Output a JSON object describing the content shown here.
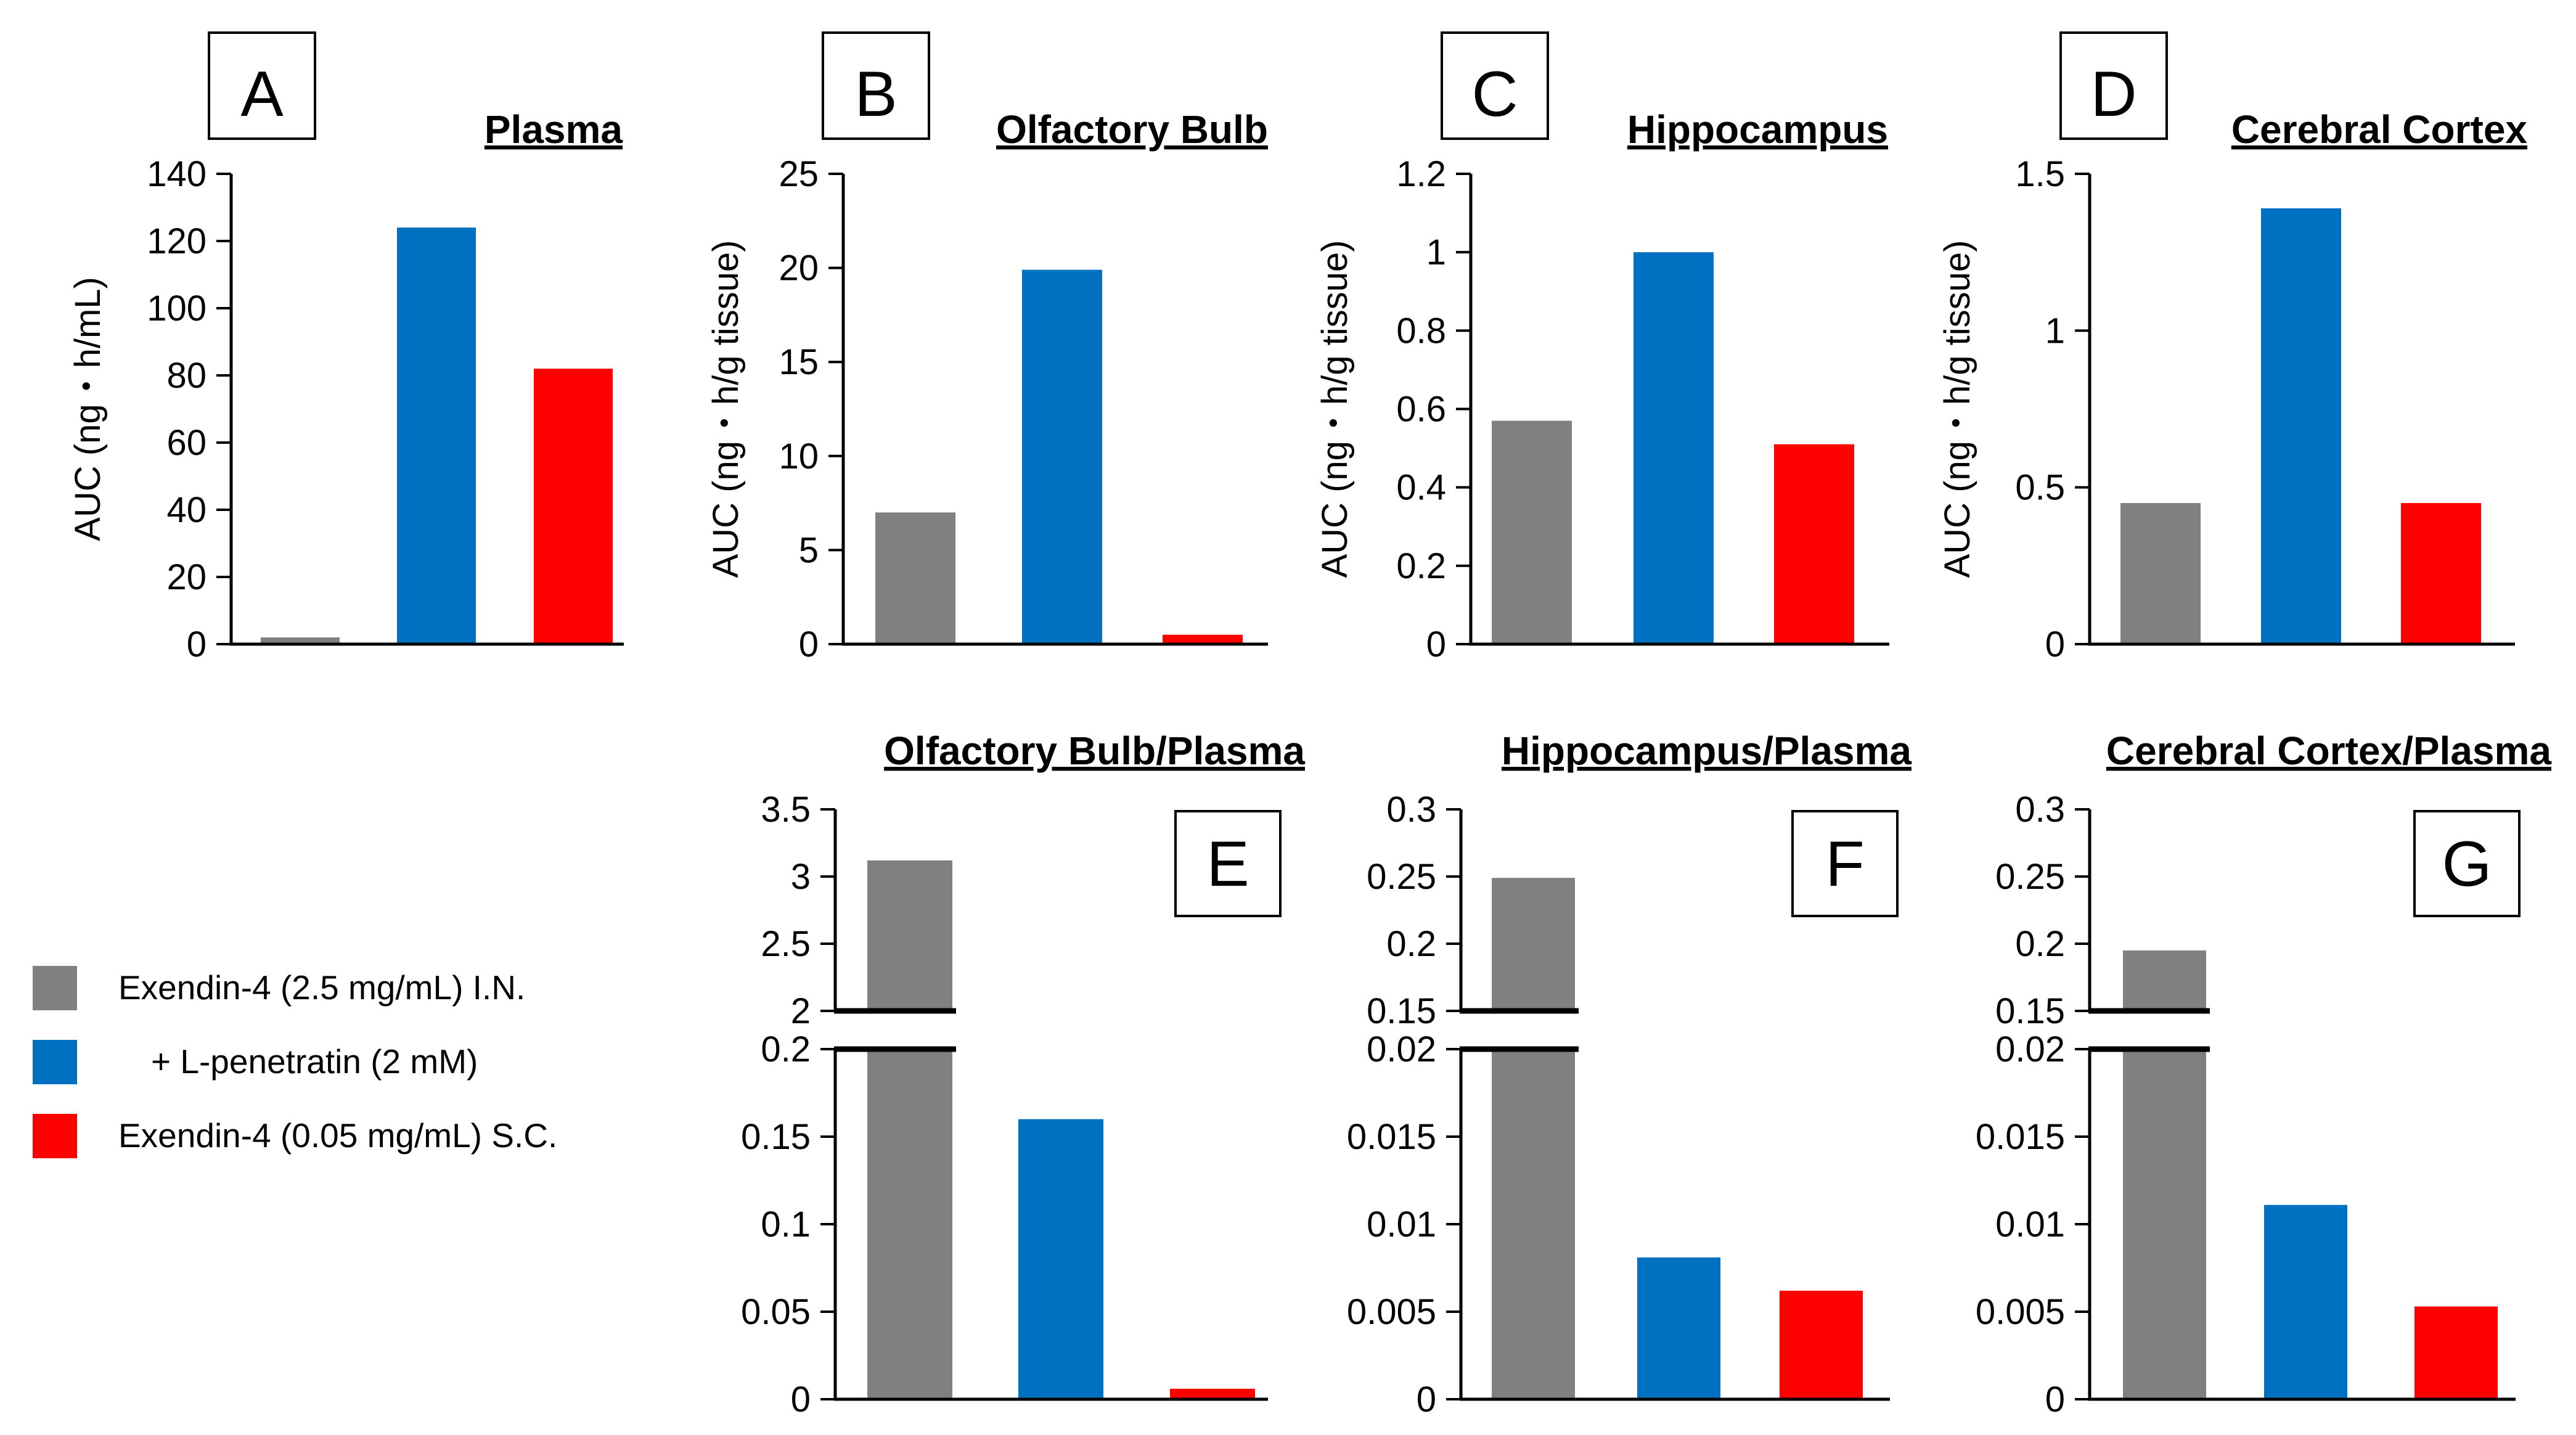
{
  "figure": {
    "series": [
      {
        "key": "in",
        "name": "Exendin-4 (2.5 mg/mL) I.N.",
        "color": "#808080"
      },
      {
        "key": "lpen",
        "name": "+ L-penetratin (2 mM)",
        "color": "#0070C0"
      },
      {
        "key": "sc",
        "name": "Exendin-4 (0.05 mg/mL) S.C.",
        "color": "#FF0000"
      }
    ]
  },
  "chart_data": [
    {
      "id": "A",
      "letter": "A",
      "type": "bar",
      "title": "Plasma",
      "ylabel": "AUC (ng・h/mL)",
      "ylim": [
        0,
        140
      ],
      "yticks": [
        "0",
        "20",
        "40",
        "60",
        "80",
        "100",
        "120",
        "140"
      ],
      "values": [
        2,
        124,
        82
      ]
    },
    {
      "id": "B",
      "letter": "B",
      "type": "bar",
      "title": "Olfactory Bulb",
      "ylabel": "AUC (ng・h/g tissue)",
      "ylim": [
        0,
        25
      ],
      "yticks": [
        "0",
        "5",
        "10",
        "15",
        "20",
        "25"
      ],
      "values": [
        7,
        19.9,
        0.5
      ]
    },
    {
      "id": "C",
      "letter": "C",
      "type": "bar",
      "title": "Hippocampus",
      "ylabel": "AUC (ng・h/g tissue)",
      "ylim": [
        0,
        1.2
      ],
      "yticks": [
        "0",
        "0.2",
        "0.4",
        "0.6",
        "0.8",
        "1",
        "1.2"
      ],
      "values": [
        0.57,
        1.0,
        0.51
      ]
    },
    {
      "id": "D",
      "letter": "D",
      "type": "bar",
      "title": "Cerebral Cortex",
      "ylabel": "AUC (ng・h/g tissue)",
      "ylim": [
        0,
        1.5
      ],
      "yticks": [
        "0",
        "0.5",
        "1",
        "1.5"
      ],
      "values": [
        0.45,
        1.39,
        0.45
      ]
    },
    {
      "id": "E",
      "letter": "E",
      "type": "bar",
      "title": "Olfactory Bulb/Plasma",
      "broken_axis": true,
      "lower_ylim": [
        0,
        0.2
      ],
      "lower_yticks": [
        "0",
        "0.05",
        "0.1",
        "0.15",
        "0.2"
      ],
      "upper_ylim": [
        2,
        3.5
      ],
      "upper_yticks": [
        "2",
        "2.5",
        "3",
        "3.5"
      ],
      "values": [
        3.12,
        0.16,
        0.006
      ]
    },
    {
      "id": "F",
      "letter": "F",
      "type": "bar",
      "title": "Hippocampus/Plasma",
      "broken_axis": true,
      "lower_ylim": [
        0,
        0.02
      ],
      "lower_yticks": [
        "0",
        "0.005",
        "0.01",
        "0.015",
        "0.02"
      ],
      "upper_ylim": [
        0.15,
        0.3
      ],
      "upper_yticks": [
        "0.15",
        "0.2",
        "0.25",
        "0.3"
      ],
      "values": [
        0.249,
        0.0081,
        0.0062
      ]
    },
    {
      "id": "G",
      "letter": "G",
      "type": "bar",
      "title": "Cerebral Cortex/Plasma",
      "broken_axis": true,
      "lower_ylim": [
        0,
        0.02
      ],
      "lower_yticks": [
        "0",
        "0.005",
        "0.01",
        "0.015",
        "0.02"
      ],
      "upper_ylim": [
        0.15,
        0.3
      ],
      "upper_yticks": [
        "0.15",
        "0.2",
        "0.25",
        "0.3"
      ],
      "values": [
        0.195,
        0.0111,
        0.0053
      ]
    }
  ]
}
